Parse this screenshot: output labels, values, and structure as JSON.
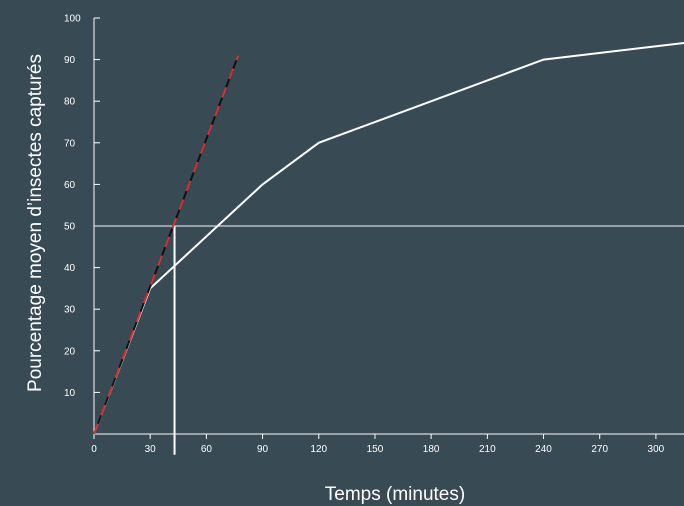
{
  "chart_data": {
    "type": "line",
    "title": "",
    "xlabel": "Temps (minutes)",
    "ylabel": "Pourcentage moyen d’insectes capturés",
    "xlim": [
      0,
      315
    ],
    "ylim": [
      0,
      100
    ],
    "x_ticks": [
      0,
      30,
      60,
      90,
      120,
      150,
      180,
      210,
      240,
      270,
      300
    ],
    "y_ticks": [
      10,
      20,
      30,
      40,
      50,
      60,
      70,
      80,
      90,
      100
    ],
    "grid": false,
    "legend": "none",
    "series": [
      {
        "kind": "curve",
        "color": "#ffffff",
        "x": [
          0,
          30,
          90,
          120,
          240,
          315
        ],
        "y": [
          0,
          35,
          60,
          70,
          90,
          94
        ]
      },
      {
        "kind": "tangent",
        "style": "dashed",
        "colors": [
          "#111111",
          "#d93030"
        ],
        "x": [
          0,
          77
        ],
        "y": [
          0,
          91
        ]
      }
    ],
    "reference_lines": [
      {
        "orientation": "horizontal",
        "y": 50,
        "color": "#cfd6da"
      },
      {
        "orientation": "vertical",
        "x": 43,
        "y_from": -5,
        "y_to": 50,
        "color": "#ffffff"
      }
    ],
    "axis_color": "#ffffff",
    "background": "#384a54"
  }
}
